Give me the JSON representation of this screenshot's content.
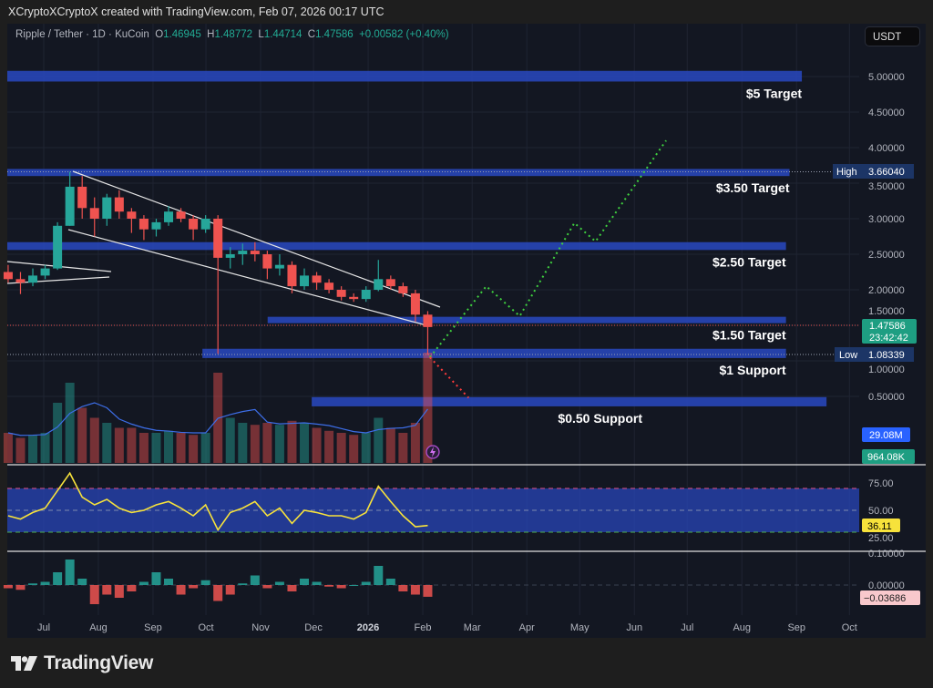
{
  "header": {
    "credit": "XCryptoXCryptoX created with TradingView.com, Feb 07, 2026 00:17 UTC"
  },
  "legend": {
    "symbol": "Ripple / Tether · 1D · KuCoin",
    "open_label": "O",
    "open": "1.46945",
    "high_label": "H",
    "high": "1.48772",
    "low_label": "L",
    "low": "1.44714",
    "close_label": "C",
    "close": "1.47586",
    "change": "+0.00582 (+0.40%)"
  },
  "currency_button": "USDT",
  "footer": {
    "brand": "TradingView",
    "logo_icon": "tradingview-logo-icon"
  },
  "colors": {
    "up": "#26a69a",
    "down": "#ef5350",
    "zone": "#2846b8",
    "background": "#131722",
    "rsi_line": "#f7e23b",
    "volume_ma": "#3d6ee8",
    "projection_up": "#3fd13f",
    "projection_down": "#ff3b3b"
  },
  "axis_tags": {
    "current_price": "1.47586",
    "countdown": "23:42:42",
    "high_label": "High",
    "high_value": "3.66040",
    "low_label": "Low",
    "low_value": "1.08339",
    "volume_value": "29.08M",
    "volume_ma_value": "964.08K",
    "rsi_value": "36.11",
    "macd_value": "−0.03686"
  },
  "chart_data": {
    "type": "candlestick",
    "interval_shown": "1D",
    "price_axis": {
      "ticks": [
        "5.00000",
        "4.50000",
        "4.00000",
        "3.50000",
        "3.00000",
        "2.50000",
        "2.00000",
        "1.50000",
        "1.00000",
        "0.50000"
      ],
      "tick_values": [
        5,
        4.5,
        4,
        3.5,
        3,
        2.5,
        2,
        1.5,
        1,
        0.5
      ],
      "range": [
        0.0,
        5.5
      ]
    },
    "time_axis": {
      "ticks": [
        {
          "label": "Jul",
          "date": "2025-07-01"
        },
        {
          "label": "Aug",
          "date": "2025-08-01"
        },
        {
          "label": "Sep",
          "date": "2025-09-01"
        },
        {
          "label": "Oct",
          "date": "2025-10-01"
        },
        {
          "label": "Nov",
          "date": "2025-11-01"
        },
        {
          "label": "Dec",
          "date": "2025-12-01"
        },
        {
          "label": "2026",
          "date": "2026-01-01",
          "bold": true
        },
        {
          "label": "Feb",
          "date": "2026-02-01"
        },
        {
          "label": "Mar",
          "date": "2026-03-01"
        },
        {
          "label": "Apr",
          "date": "2026-04-01"
        },
        {
          "label": "May",
          "date": "2026-05-01"
        },
        {
          "label": "Jun",
          "date": "2026-06-01"
        },
        {
          "label": "Jul",
          "date": "2026-07-01"
        },
        {
          "label": "Aug",
          "date": "2026-08-01"
        },
        {
          "label": "Sep",
          "date": "2026-09-01"
        },
        {
          "label": "Oct",
          "date": "2026-10-01"
        }
      ]
    },
    "candles": [
      {
        "d": "2025-06-09",
        "o": 2.25,
        "h": 2.35,
        "l": 2.1,
        "c": 2.15
      },
      {
        "d": "2025-06-16",
        "o": 2.15,
        "h": 2.25,
        "l": 1.94,
        "c": 2.1
      },
      {
        "d": "2025-06-23",
        "o": 2.1,
        "h": 2.3,
        "l": 2.05,
        "c": 2.2
      },
      {
        "d": "2025-06-30",
        "o": 2.2,
        "h": 2.35,
        "l": 2.15,
        "c": 2.3
      },
      {
        "d": "2025-07-07",
        "o": 2.3,
        "h": 2.95,
        "l": 2.28,
        "c": 2.9
      },
      {
        "d": "2025-07-14",
        "o": 2.9,
        "h": 3.66,
        "l": 2.9,
        "c": 3.45
      },
      {
        "d": "2025-07-21",
        "o": 3.45,
        "h": 3.6,
        "l": 3.0,
        "c": 3.15
      },
      {
        "d": "2025-07-28",
        "o": 3.15,
        "h": 3.3,
        "l": 2.75,
        "c": 3.0
      },
      {
        "d": "2025-08-04",
        "o": 3.0,
        "h": 3.35,
        "l": 2.9,
        "c": 3.3
      },
      {
        "d": "2025-08-11",
        "o": 3.3,
        "h": 3.4,
        "l": 3.0,
        "c": 3.1
      },
      {
        "d": "2025-08-18",
        "o": 3.1,
        "h": 3.15,
        "l": 2.8,
        "c": 3.0
      },
      {
        "d": "2025-08-25",
        "o": 3.0,
        "h": 3.05,
        "l": 2.7,
        "c": 2.85
      },
      {
        "d": "2025-09-01",
        "o": 2.85,
        "h": 3.0,
        "l": 2.75,
        "c": 2.95
      },
      {
        "d": "2025-09-08",
        "o": 2.95,
        "h": 3.18,
        "l": 2.9,
        "c": 3.1
      },
      {
        "d": "2025-09-15",
        "o": 3.1,
        "h": 3.15,
        "l": 2.95,
        "c": 3.0
      },
      {
        "d": "2025-09-22",
        "o": 3.0,
        "h": 3.05,
        "l": 2.7,
        "c": 2.85
      },
      {
        "d": "2025-09-29",
        "o": 2.85,
        "h": 3.05,
        "l": 2.8,
        "c": 3.0
      },
      {
        "d": "2025-10-06",
        "o": 3.0,
        "h": 3.05,
        "l": 1.1,
        "c": 2.45
      },
      {
        "d": "2025-10-13",
        "o": 2.45,
        "h": 2.6,
        "l": 2.3,
        "c": 2.5
      },
      {
        "d": "2025-10-20",
        "o": 2.5,
        "h": 2.65,
        "l": 2.35,
        "c": 2.55
      },
      {
        "d": "2025-10-27",
        "o": 2.55,
        "h": 2.67,
        "l": 2.4,
        "c": 2.5
      },
      {
        "d": "2025-11-03",
        "o": 2.5,
        "h": 2.55,
        "l": 2.15,
        "c": 2.3
      },
      {
        "d": "2025-11-10",
        "o": 2.3,
        "h": 2.5,
        "l": 2.2,
        "c": 2.35
      },
      {
        "d": "2025-11-17",
        "o": 2.35,
        "h": 2.4,
        "l": 1.95,
        "c": 2.05
      },
      {
        "d": "2025-11-24",
        "o": 2.05,
        "h": 2.3,
        "l": 2.0,
        "c": 2.2
      },
      {
        "d": "2025-12-01",
        "o": 2.2,
        "h": 2.25,
        "l": 2.0,
        "c": 2.1
      },
      {
        "d": "2025-12-08",
        "o": 2.1,
        "h": 2.15,
        "l": 1.95,
        "c": 2.0
      },
      {
        "d": "2025-12-15",
        "o": 2.0,
        "h": 2.05,
        "l": 1.85,
        "c": 1.9
      },
      {
        "d": "2025-12-22",
        "o": 1.9,
        "h": 1.95,
        "l": 1.83,
        "c": 1.87
      },
      {
        "d": "2025-12-29",
        "o": 1.87,
        "h": 2.05,
        "l": 1.83,
        "c": 2.0
      },
      {
        "d": "2026-01-05",
        "o": 2.0,
        "h": 2.42,
        "l": 1.98,
        "c": 2.15
      },
      {
        "d": "2026-01-12",
        "o": 2.15,
        "h": 2.2,
        "l": 2.0,
        "c": 2.05
      },
      {
        "d": "2026-01-19",
        "o": 2.05,
        "h": 2.1,
        "l": 1.9,
        "c": 1.95
      },
      {
        "d": "2026-01-26",
        "o": 1.95,
        "h": 2.0,
        "l": 1.55,
        "c": 1.65
      },
      {
        "d": "2026-02-02",
        "o": 1.65,
        "h": 1.7,
        "l": 1.08339,
        "c": 1.47586
      }
    ],
    "volume_millions": [
      30,
      25,
      28,
      30,
      60,
      80,
      55,
      45,
      40,
      35,
      35,
      30,
      30,
      32,
      30,
      28,
      30,
      90,
      45,
      40,
      38,
      40,
      38,
      42,
      40,
      35,
      32,
      30,
      28,
      30,
      45,
      35,
      30,
      40,
      110
    ],
    "rsi": {
      "values": [
        45,
        42,
        48,
        52,
        68,
        84,
        62,
        55,
        60,
        52,
        48,
        50,
        55,
        58,
        52,
        45,
        55,
        32,
        48,
        52,
        58,
        45,
        52,
        38,
        50,
        48,
        45,
        45,
        42,
        48,
        72,
        58,
        45,
        35,
        36.11
      ],
      "ticks": [
        "75.00",
        "50.00",
        "25.00"
      ],
      "tick_values": [
        75,
        50,
        25
      ],
      "band": [
        30,
        70
      ]
    },
    "macd_histogram": {
      "values": [
        -0.01,
        -0.015,
        0.005,
        0.01,
        0.04,
        0.08,
        0.02,
        -0.06,
        -0.03,
        -0.04,
        -0.02,
        0.01,
        0.04,
        0.02,
        -0.03,
        -0.01,
        0.015,
        -0.05,
        -0.03,
        0.005,
        0.03,
        -0.01,
        0.01,
        -0.02,
        0.02,
        0.01,
        -0.005,
        -0.01,
        0.0,
        0.01,
        0.06,
        0.02,
        -0.02,
        -0.03,
        -0.03686
      ],
      "ticks": [
        "0.10000",
        "0.00000"
      ],
      "tick_values": [
        0.1,
        0
      ]
    },
    "zones": [
      {
        "label": "$5 Target",
        "from": "2025-06-01",
        "to": "2026-09-04",
        "top": 5.08,
        "bottom": 4.93
      },
      {
        "label": "$3.50 Target",
        "from": "2025-06-01",
        "to": "2026-08-28",
        "top": 3.7,
        "bottom": 3.6
      },
      {
        "label": "$2.50 Target",
        "from": "2025-06-01",
        "to": "2026-08-26",
        "top": 2.67,
        "bottom": 2.56
      },
      {
        "label": "$1.50 Target",
        "from": "2025-11-05",
        "to": "2026-08-26",
        "top": 1.62,
        "bottom": 1.53
      },
      {
        "label": "$1 Support",
        "from": "2025-09-29",
        "to": "2026-08-26",
        "top": 1.17,
        "bottom": 1.04
      },
      {
        "label": "$0.50 Support",
        "from": "2025-11-30",
        "to": "2026-09-18",
        "top": 0.49,
        "bottom": 0.36
      }
    ],
    "projection_up": [
      {
        "d": "2026-02-05",
        "p": 1.05
      },
      {
        "d": "2026-03-09",
        "p": 2.05
      },
      {
        "d": "2026-03-28",
        "p": 1.63
      },
      {
        "d": "2026-04-28",
        "p": 2.94
      },
      {
        "d": "2026-05-10",
        "p": 2.68
      },
      {
        "d": "2026-06-19",
        "p": 4.1
      }
    ],
    "projection_down": [
      {
        "d": "2026-02-05",
        "p": 1.05
      },
      {
        "d": "2026-02-27",
        "p": 0.48
      }
    ]
  }
}
